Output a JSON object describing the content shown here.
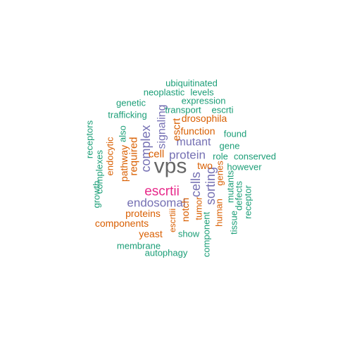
{
  "colors": {
    "teal": "#1b9e77",
    "orange": "#d95f02",
    "purple": "#7570b3",
    "magenta": "#e7298a",
    "gray": "#666666"
  },
  "words": [
    {
      "text": "vps",
      "color": "gray"
    },
    {
      "text": "escrtii",
      "color": "magenta"
    },
    {
      "text": "complex",
      "color": "purple"
    },
    {
      "text": "signaling",
      "color": "purple"
    },
    {
      "text": "protein",
      "color": "purple"
    },
    {
      "text": "mutant",
      "color": "purple"
    },
    {
      "text": "endosomal",
      "color": "purple"
    },
    {
      "text": "cells",
      "color": "purple"
    },
    {
      "text": "sorting",
      "color": "purple"
    },
    {
      "text": "escrt",
      "color": "orange"
    },
    {
      "text": "function",
      "color": "orange"
    },
    {
      "text": "required",
      "color": "orange"
    },
    {
      "text": "cell",
      "color": "orange"
    },
    {
      "text": "pathway",
      "color": "orange"
    },
    {
      "text": "endocytic",
      "color": "orange"
    },
    {
      "text": "drosophila",
      "color": "orange"
    },
    {
      "text": "two",
      "color": "orange"
    },
    {
      "text": "genes",
      "color": "orange"
    },
    {
      "text": "proteins",
      "color": "orange"
    },
    {
      "text": "notch",
      "color": "orange"
    },
    {
      "text": "tumor",
      "color": "orange"
    },
    {
      "text": "human",
      "color": "orange"
    },
    {
      "text": "components",
      "color": "orange"
    },
    {
      "text": "yeast",
      "color": "orange"
    },
    {
      "text": "escrtiii",
      "color": "orange"
    },
    {
      "text": "ubiquitinated",
      "color": "teal"
    },
    {
      "text": "neoplastic",
      "color": "teal"
    },
    {
      "text": "levels",
      "color": "teal"
    },
    {
      "text": "expression",
      "color": "teal"
    },
    {
      "text": "genetic",
      "color": "teal"
    },
    {
      "text": "transport",
      "color": "teal"
    },
    {
      "text": "escrti",
      "color": "teal"
    },
    {
      "text": "trafficking",
      "color": "teal"
    },
    {
      "text": "also",
      "color": "teal"
    },
    {
      "text": "found",
      "color": "teal"
    },
    {
      "text": "receptors",
      "color": "teal"
    },
    {
      "text": "complexes",
      "color": "teal"
    },
    {
      "text": "gene",
      "color": "teal"
    },
    {
      "text": "role",
      "color": "teal"
    },
    {
      "text": "conserved",
      "color": "teal"
    },
    {
      "text": "however",
      "color": "teal"
    },
    {
      "text": "growth",
      "color": "teal"
    },
    {
      "text": "mutants",
      "color": "teal"
    },
    {
      "text": "defects",
      "color": "teal"
    },
    {
      "text": "receptor",
      "color": "teal"
    },
    {
      "text": "tissue",
      "color": "teal"
    },
    {
      "text": "show",
      "color": "teal"
    },
    {
      "text": "component",
      "color": "teal"
    },
    {
      "text": "membrane",
      "color": "teal"
    },
    {
      "text": "autophagy",
      "color": "teal"
    }
  ]
}
